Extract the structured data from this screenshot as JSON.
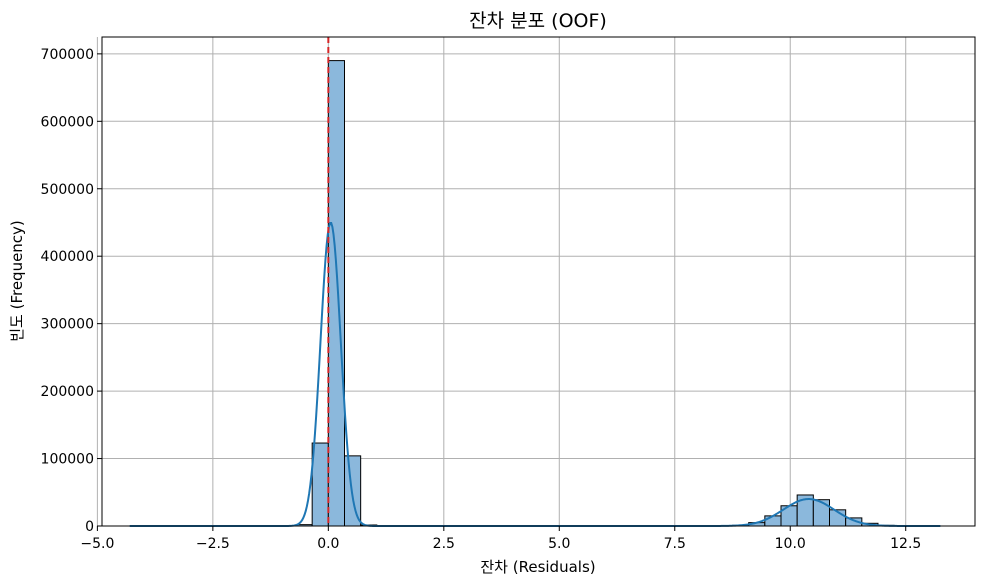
{
  "chart_data": {
    "type": "histogram",
    "title": "잔차 분포 (OOF)",
    "xlabel": "잔차 (Residuals)",
    "ylabel": "빈도 (Frequency)",
    "xlim": [
      -4.9,
      14.0
    ],
    "ylim": [
      0,
      725000
    ],
    "xticks": [
      -5.0,
      -2.5,
      0.0,
      2.5,
      5.0,
      7.5,
      10.0,
      12.5
    ],
    "xtick_labels": [
      "−5.0",
      "−2.5",
      "0.0",
      "2.5",
      "5.0",
      "7.5",
      "10.0",
      "12.5"
    ],
    "yticks": [
      0,
      100000,
      200000,
      300000,
      400000,
      500000,
      600000,
      700000
    ],
    "ytick_labels": [
      "0",
      "100000",
      "200000",
      "300000",
      "400000",
      "500000",
      "600000",
      "700000"
    ],
    "grid": true,
    "bin_width": 0.35,
    "bins": [
      {
        "x0": -0.7,
        "x1": -0.35,
        "count": 2000
      },
      {
        "x0": -0.35,
        "x1": 0.0,
        "count": 123000
      },
      {
        "x0": 0.0,
        "x1": 0.35,
        "count": 690000
      },
      {
        "x0": 0.35,
        "x1": 0.7,
        "count": 104000
      },
      {
        "x0": 0.7,
        "x1": 1.05,
        "count": 1500
      },
      {
        "x0": 8.75,
        "x1": 9.1,
        "count": 1000
      },
      {
        "x0": 9.1,
        "x1": 9.45,
        "count": 5000
      },
      {
        "x0": 9.45,
        "x1": 9.8,
        "count": 15000
      },
      {
        "x0": 9.8,
        "x1": 10.15,
        "count": 30000
      },
      {
        "x0": 10.15,
        "x1": 10.5,
        "count": 46000
      },
      {
        "x0": 10.5,
        "x1": 10.85,
        "count": 39000
      },
      {
        "x0": 10.85,
        "x1": 11.2,
        "count": 24000
      },
      {
        "x0": 11.2,
        "x1": 11.55,
        "count": 12000
      },
      {
        "x0": 11.55,
        "x1": 11.9,
        "count": 4000
      },
      {
        "x0": 11.9,
        "x1": 12.25,
        "count": 1000
      }
    ],
    "kde": {
      "components": [
        {
          "mean": 0.05,
          "sd": 0.22,
          "peak": 450000
        },
        {
          "mean": 10.4,
          "sd": 0.55,
          "peak": 40000
        }
      ],
      "x_range": [
        -4.3,
        13.25
      ]
    },
    "reference_line": {
      "x": 0.0,
      "style": "dashed"
    },
    "colors": {
      "bar_fill": "#8bb8dc",
      "bar_edge": "#000000",
      "kde_line": "#1f77b4",
      "reference_line": "#d62728",
      "grid": "#b0b0b0"
    }
  }
}
